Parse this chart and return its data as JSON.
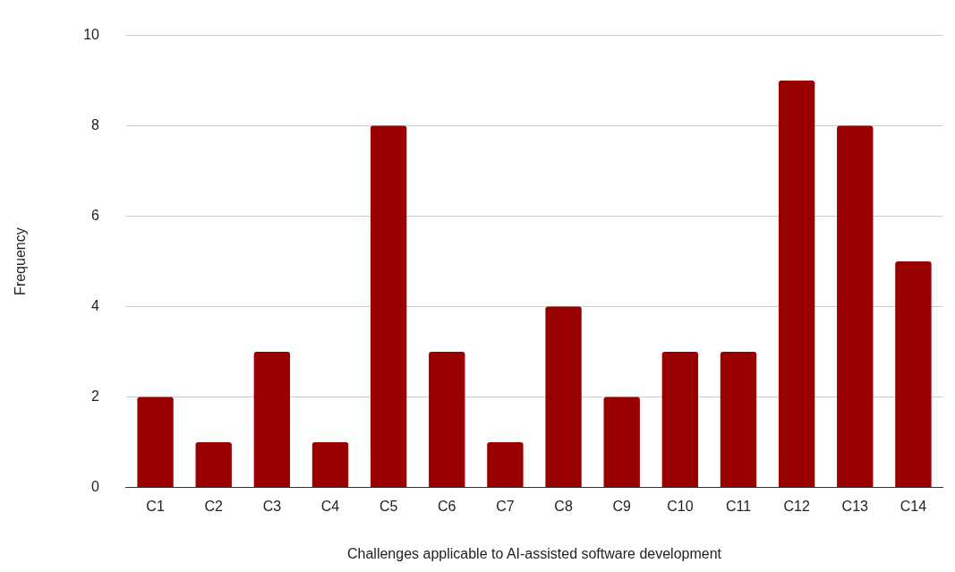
{
  "chart_data": {
    "type": "bar",
    "xlabel": "Challenges applicable to AI-assisted software development",
    "ylabel": "Frequency",
    "categories": [
      "C1",
      "C2",
      "C3",
      "C4",
      "C5",
      "C6",
      "C7",
      "C8",
      "C9",
      "C10",
      "C11",
      "C12",
      "C13",
      "C14"
    ],
    "values": [
      2,
      1,
      3,
      1,
      8,
      3,
      1,
      4,
      2,
      3,
      3,
      9,
      8,
      5
    ],
    "color": "#990000",
    "ylim": [
      0,
      10
    ],
    "yticks": [
      0,
      2,
      4,
      6,
      8,
      10
    ],
    "grid": "y",
    "legend": false
  }
}
